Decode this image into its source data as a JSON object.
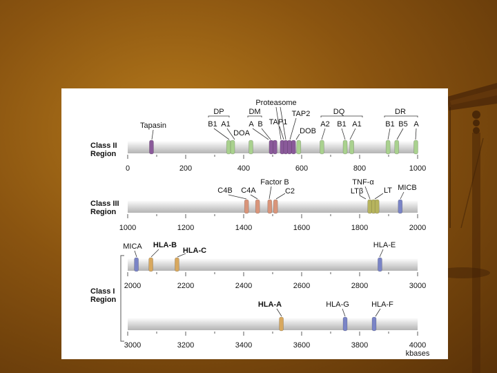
{
  "colors": {
    "class_ii": "#a9d18e",
    "class_ii_mhc": "#8fc271",
    "purple": "#8a5a9a",
    "salmon": "#d9957a",
    "olive": "#b7b45e",
    "blue": "#7a84c6",
    "orange": "#d8a85e"
  },
  "rows": [
    {
      "label_line1": "Class II",
      "label_line2": "Region",
      "ticks": [
        "0",
        "200",
        "400",
        "600",
        "800",
        "1000"
      ],
      "range": [
        0,
        1000
      ]
    },
    {
      "label_line1": "Class III",
      "label_line2": "Region",
      "ticks": [
        "1000",
        "1200",
        "1400",
        "1600",
        "1800",
        "2000"
      ],
      "range": [
        1000,
        2000
      ]
    },
    {
      "label_line1": "",
      "label_line2": "",
      "ticks": [
        "2000",
        "2200",
        "2400",
        "2600",
        "2800",
        "3000"
      ],
      "range": [
        2000,
        3000
      ]
    },
    {
      "label_line1": "",
      "label_line2": "",
      "ticks": [
        "3000",
        "3200",
        "3400",
        "3600",
        "3800",
        "4000"
      ],
      "range": [
        3000,
        4000
      ]
    }
  ],
  "class_i_label_line1": "Class I",
  "class_i_label_line2": "Region",
  "kbases_label": "kbases",
  "class_ii_genes": {
    "tapasin": "Tapasin",
    "dp": "DP",
    "dp_b1": "B1",
    "dp_a1": "A1",
    "doa": "DOA",
    "dm": "DM",
    "dm_a": "A",
    "dm_b": "B",
    "proteasome": "Proteasome",
    "tap1": "TAP1",
    "tap2": "TAP2",
    "dob": "DOB",
    "dq": "DQ",
    "dq_a2": "A2",
    "dq_b1": "B1",
    "dq_a1": "A1",
    "dr": "DR",
    "dr_b1": "B1",
    "dr_b5": "B5",
    "dr_a": "A"
  },
  "class_iii_genes": {
    "c4b": "C4B",
    "c4a": "C4A",
    "factor_b": "Factor B",
    "c2": "C2",
    "tnf_alpha": "TNF-α",
    "lt_beta": "LTβ",
    "lt": "LT",
    "micb": "MICB"
  },
  "class_i_genes": {
    "mica": "MICA",
    "hla_b": "HLA-B",
    "hla_c": "HLA-C",
    "hla_e": "HLA-E",
    "hla_a": "HLA-A",
    "hla_g": "HLA-G",
    "hla_f": "HLA-F"
  },
  "bands": [
    {
      "row": 0,
      "kb": 82,
      "color": "purple"
    },
    {
      "row": 0,
      "kb": 348,
      "color": "class_ii"
    },
    {
      "row": 0,
      "kb": 362,
      "color": "class_ii"
    },
    {
      "row": 0,
      "kb": 425,
      "color": "class_ii"
    },
    {
      "row": 0,
      "kb": 495,
      "color": "purple"
    },
    {
      "row": 0,
      "kb": 508,
      "color": "purple"
    },
    {
      "row": 0,
      "kb": 533,
      "color": "purple"
    },
    {
      "row": 0,
      "kb": 545,
      "color": "purple"
    },
    {
      "row": 0,
      "kb": 558,
      "color": "purple"
    },
    {
      "row": 0,
      "kb": 572,
      "color": "purple"
    },
    {
      "row": 0,
      "kb": 590,
      "color": "class_ii"
    },
    {
      "row": 0,
      "kb": 670,
      "color": "class_ii"
    },
    {
      "row": 0,
      "kb": 750,
      "color": "class_ii"
    },
    {
      "row": 0,
      "kb": 773,
      "color": "class_ii"
    },
    {
      "row": 0,
      "kb": 898,
      "color": "class_ii"
    },
    {
      "row": 0,
      "kb": 928,
      "color": "class_ii"
    },
    {
      "row": 0,
      "kb": 994,
      "color": "class_ii"
    },
    {
      "row": 1,
      "kb": 1410,
      "color": "salmon"
    },
    {
      "row": 1,
      "kb": 1448,
      "color": "salmon"
    },
    {
      "row": 1,
      "kb": 1490,
      "color": "salmon"
    },
    {
      "row": 1,
      "kb": 1510,
      "color": "salmon"
    },
    {
      "row": 1,
      "kb": 1835,
      "color": "olive"
    },
    {
      "row": 1,
      "kb": 1848,
      "color": "olive"
    },
    {
      "row": 1,
      "kb": 1860,
      "color": "olive"
    },
    {
      "row": 1,
      "kb": 1940,
      "color": "blue"
    },
    {
      "row": 2,
      "kb": 2030,
      "color": "blue"
    },
    {
      "row": 2,
      "kb": 2080,
      "color": "orange"
    },
    {
      "row": 2,
      "kb": 2170,
      "color": "orange"
    },
    {
      "row": 2,
      "kb": 2870,
      "color": "blue"
    },
    {
      "row": 3,
      "kb": 3530,
      "color": "orange"
    },
    {
      "row": 3,
      "kb": 3750,
      "color": "blue"
    },
    {
      "row": 3,
      "kb": 3850,
      "color": "blue"
    }
  ]
}
